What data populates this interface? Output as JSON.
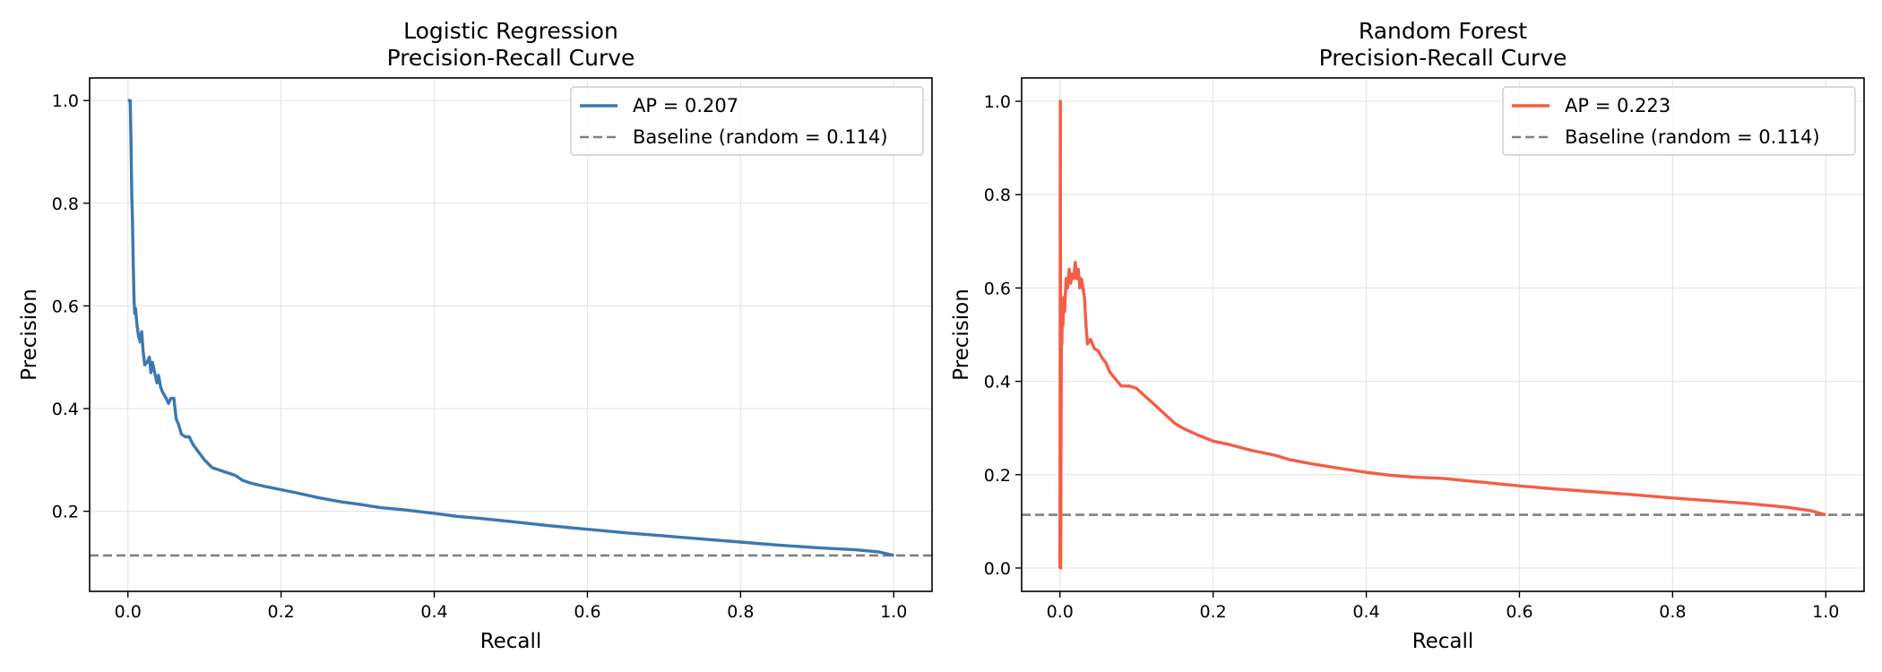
{
  "chart_data": [
    {
      "type": "line",
      "title": "Logistic Regression\nPrecision-Recall Curve",
      "title_lines": [
        "Logistic Regression",
        "Precision-Recall Curve"
      ],
      "xlabel": "Recall",
      "ylabel": "Precision",
      "xlim": [
        -0.05,
        1.05
      ],
      "ylim": [
        0.044,
        1.044
      ],
      "xticks": [
        0.0,
        0.2,
        0.4,
        0.6,
        0.8,
        1.0
      ],
      "xtick_labels": [
        "0.0",
        "0.2",
        "0.4",
        "0.6",
        "0.8",
        "1.0"
      ],
      "yticks": [
        0.2,
        0.4,
        0.6,
        0.8,
        1.0
      ],
      "ytick_labels": [
        "0.2",
        "0.4",
        "0.6",
        "0.8",
        "1.0"
      ],
      "grid": true,
      "legend_position": "top-right",
      "series": [
        {
          "name": "AP = 0.207",
          "color": "#3b78b0",
          "style": "solid",
          "x": [
            0.0,
            0.003,
            0.004,
            0.005,
            0.006,
            0.007,
            0.008,
            0.009,
            0.01,
            0.012,
            0.014,
            0.016,
            0.018,
            0.02,
            0.022,
            0.025,
            0.028,
            0.03,
            0.032,
            0.035,
            0.038,
            0.04,
            0.043,
            0.046,
            0.05,
            0.053,
            0.056,
            0.06,
            0.063,
            0.066,
            0.07,
            0.075,
            0.08,
            0.085,
            0.09,
            0.095,
            0.1,
            0.11,
            0.12,
            0.13,
            0.14,
            0.15,
            0.16,
            0.18,
            0.2,
            0.22,
            0.25,
            0.28,
            0.3,
            0.33,
            0.36,
            0.4,
            0.43,
            0.46,
            0.5,
            0.55,
            0.6,
            0.65,
            0.7,
            0.75,
            0.8,
            0.85,
            0.9,
            0.95,
            0.98,
            1.0
          ],
          "y": [
            1.0,
            1.0,
            0.93,
            0.82,
            0.76,
            0.68,
            0.61,
            0.585,
            0.595,
            0.56,
            0.54,
            0.53,
            0.55,
            0.51,
            0.485,
            0.49,
            0.5,
            0.47,
            0.49,
            0.47,
            0.45,
            0.465,
            0.44,
            0.43,
            0.42,
            0.41,
            0.42,
            0.42,
            0.38,
            0.37,
            0.35,
            0.345,
            0.345,
            0.33,
            0.32,
            0.31,
            0.3,
            0.285,
            0.28,
            0.275,
            0.27,
            0.26,
            0.255,
            0.248,
            0.242,
            0.236,
            0.226,
            0.218,
            0.214,
            0.207,
            0.203,
            0.196,
            0.19,
            0.186,
            0.18,
            0.172,
            0.165,
            0.158,
            0.152,
            0.146,
            0.14,
            0.134,
            0.129,
            0.125,
            0.121,
            0.114
          ]
        },
        {
          "name": "Baseline (random = 0.114)",
          "color": "#808080",
          "style": "dashed",
          "x": [
            -0.05,
            1.05
          ],
          "y": [
            0.114,
            0.114
          ]
        }
      ]
    },
    {
      "type": "line",
      "title": "Random Forest\nPrecision-Recall Curve",
      "title_lines": [
        "Random Forest",
        "Precision-Recall Curve"
      ],
      "xlabel": "Recall",
      "ylabel": "Precision",
      "xlim": [
        -0.05,
        1.05
      ],
      "ylim": [
        -0.05,
        1.05
      ],
      "xticks": [
        0.0,
        0.2,
        0.4,
        0.6,
        0.8,
        1.0
      ],
      "xtick_labels": [
        "0.0",
        "0.2",
        "0.4",
        "0.6",
        "0.8",
        "1.0"
      ],
      "yticks": [
        0.0,
        0.2,
        0.4,
        0.6,
        0.8,
        1.0
      ],
      "ytick_labels": [
        "0.0",
        "0.2",
        "0.4",
        "0.6",
        "0.8",
        "1.0"
      ],
      "grid": true,
      "legend_position": "top-right",
      "series": [
        {
          "name": "AP = 0.223",
          "color": "#f55d45",
          "style": "solid",
          "x": [
            0.0,
            0.0005,
            0.001,
            0.0015,
            0.002,
            0.0025,
            0.003,
            0.004,
            0.005,
            0.006,
            0.008,
            0.01,
            0.012,
            0.014,
            0.016,
            0.018,
            0.02,
            0.022,
            0.024,
            0.026,
            0.028,
            0.03,
            0.032,
            0.034,
            0.036,
            0.04,
            0.045,
            0.05,
            0.055,
            0.06,
            0.065,
            0.07,
            0.075,
            0.08,
            0.09,
            0.1,
            0.11,
            0.12,
            0.13,
            0.14,
            0.15,
            0.16,
            0.18,
            0.2,
            0.22,
            0.25,
            0.28,
            0.3,
            0.33,
            0.36,
            0.4,
            0.43,
            0.46,
            0.5,
            0.55,
            0.6,
            0.65,
            0.7,
            0.75,
            0.8,
            0.85,
            0.9,
            0.95,
            0.98,
            1.0
          ],
          "y": [
            0.0,
            1.0,
            0.0,
            0.3,
            0.5,
            0.48,
            0.53,
            0.52,
            0.58,
            0.55,
            0.62,
            0.6,
            0.64,
            0.61,
            0.63,
            0.62,
            0.655,
            0.62,
            0.64,
            0.6,
            0.62,
            0.6,
            0.58,
            0.52,
            0.48,
            0.49,
            0.47,
            0.465,
            0.45,
            0.44,
            0.42,
            0.41,
            0.4,
            0.39,
            0.39,
            0.385,
            0.37,
            0.355,
            0.34,
            0.325,
            0.31,
            0.3,
            0.285,
            0.272,
            0.265,
            0.252,
            0.242,
            0.232,
            0.223,
            0.215,
            0.205,
            0.199,
            0.195,
            0.192,
            0.184,
            0.176,
            0.169,
            0.163,
            0.157,
            0.15,
            0.144,
            0.138,
            0.13,
            0.123,
            0.114
          ]
        },
        {
          "name": "Baseline (random = 0.114)",
          "color": "#808080",
          "style": "dashed",
          "x": [
            -0.05,
            1.05
          ],
          "y": [
            0.114,
            0.114
          ]
        }
      ]
    }
  ]
}
